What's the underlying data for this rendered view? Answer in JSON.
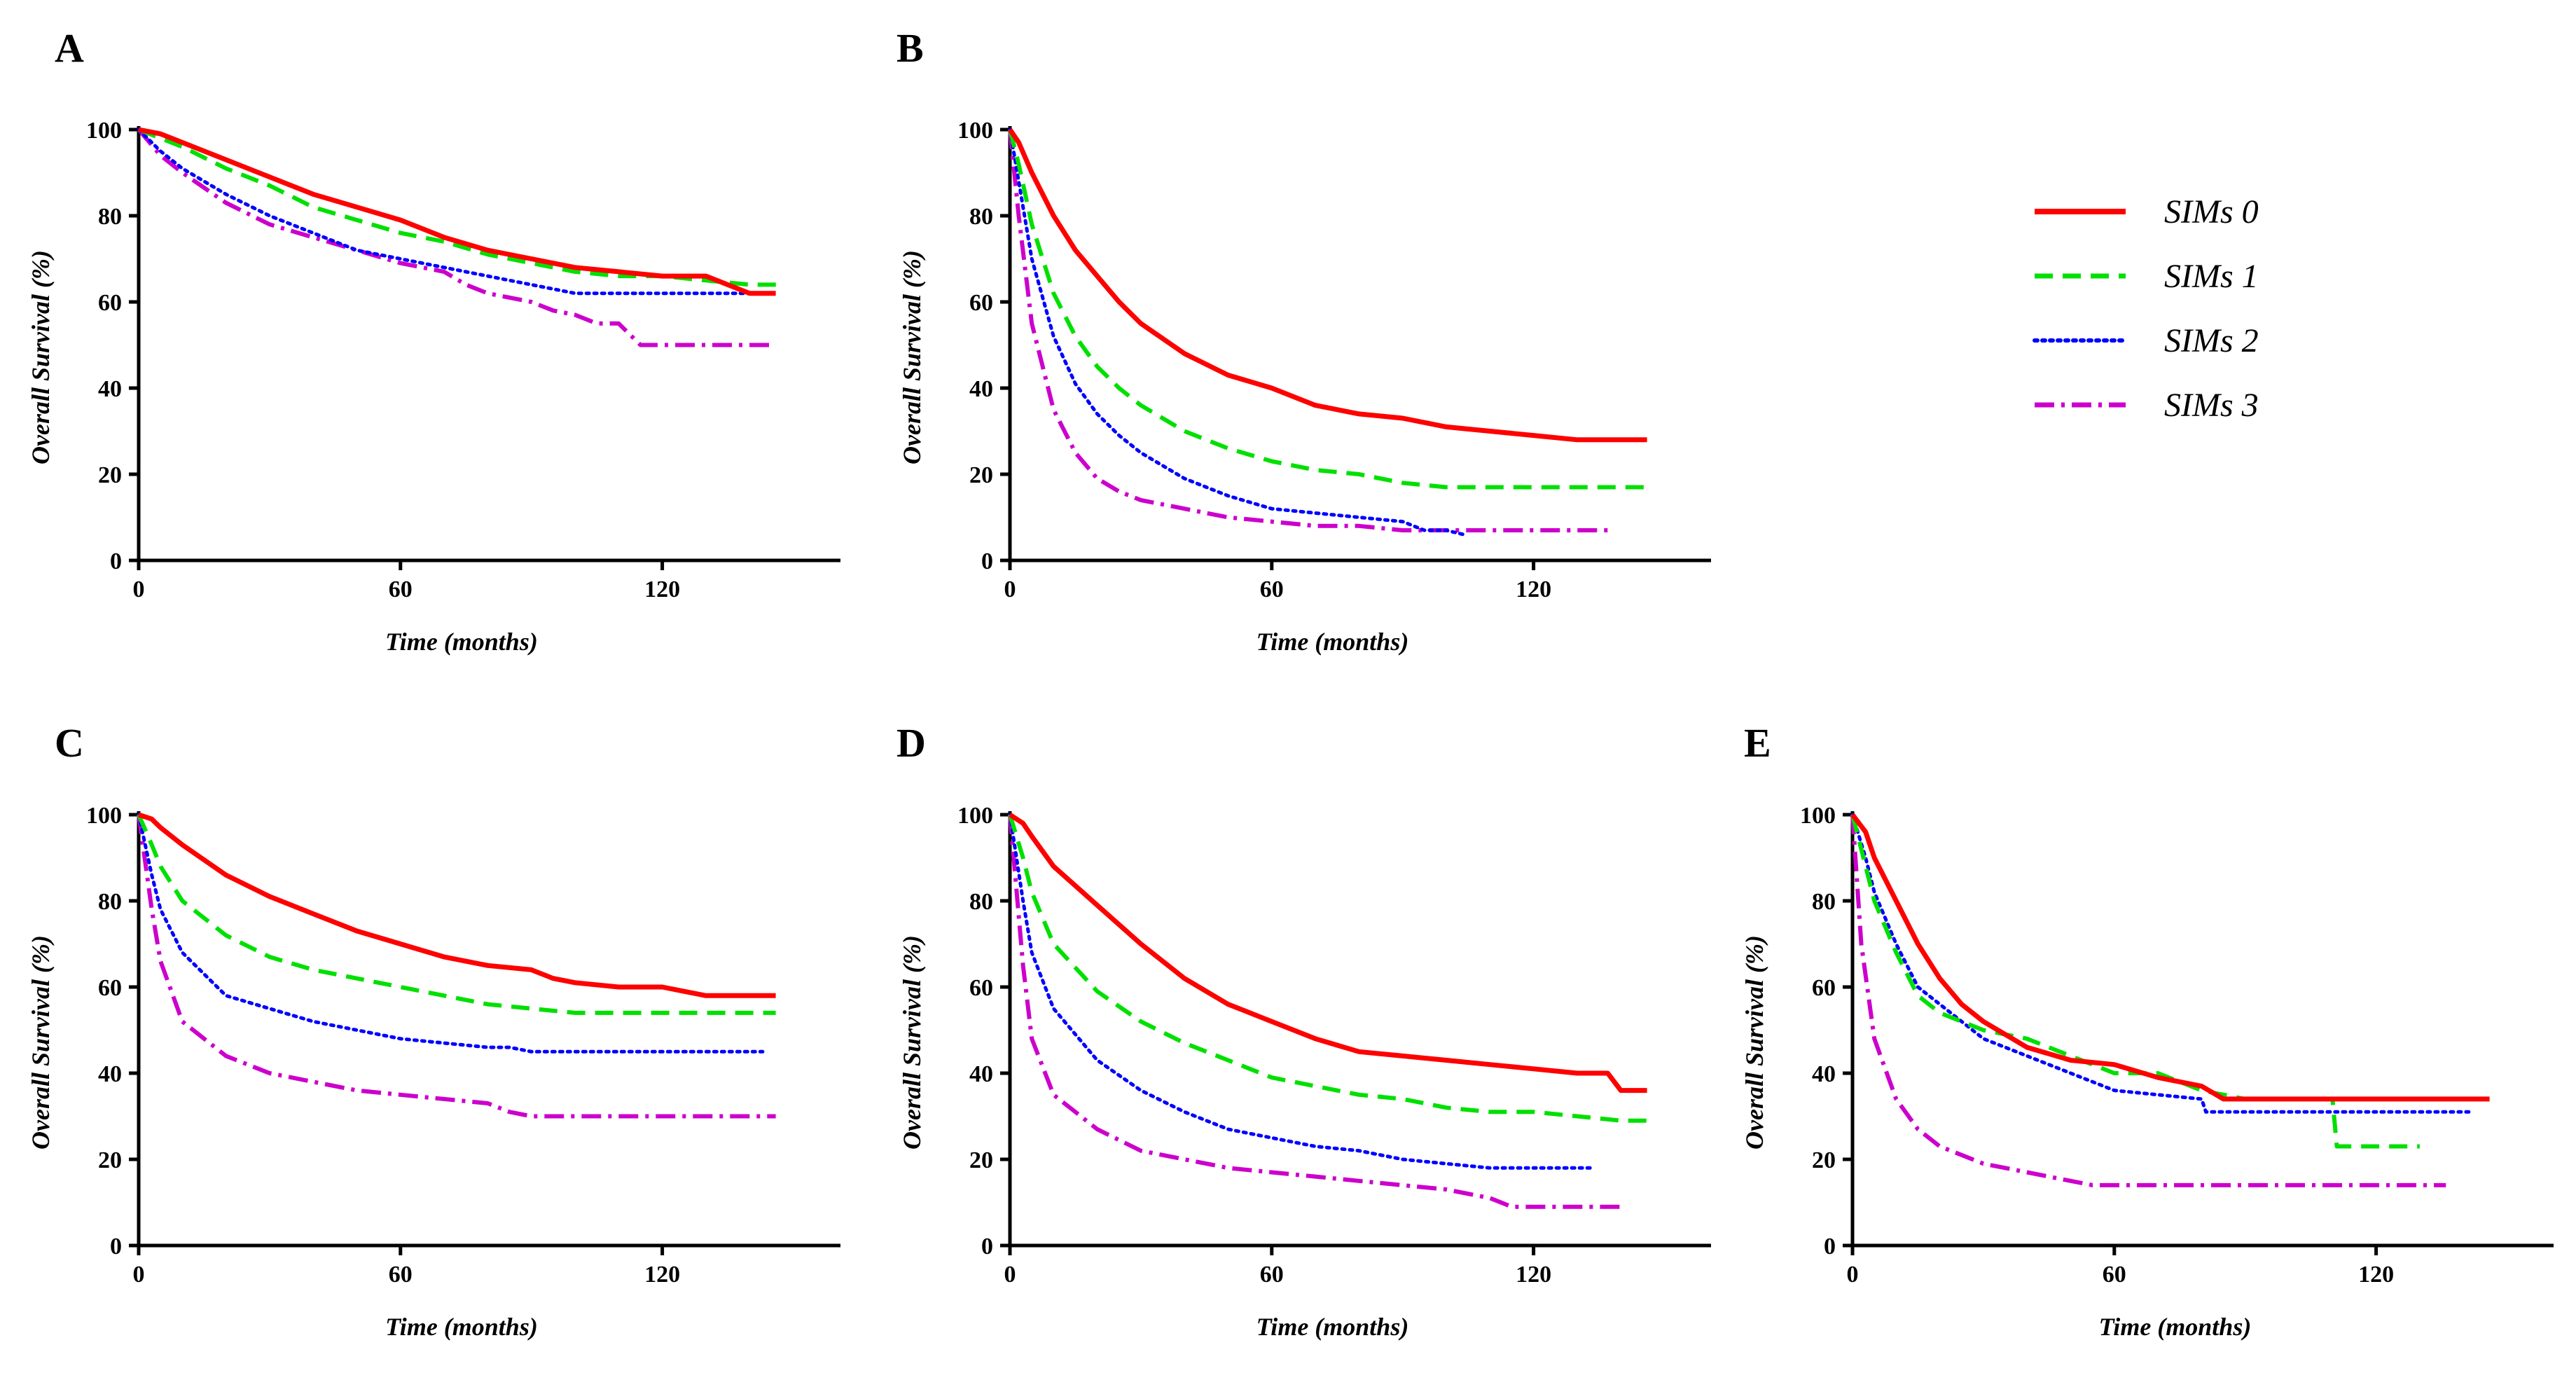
{
  "chart_data": [
    {
      "panel": "A",
      "type": "line",
      "xlabel": "Time (months)",
      "ylabel": "Overall Survival (%)",
      "xlim": [
        0,
        160
      ],
      "ylim": [
        0,
        100
      ],
      "xticks": [
        0,
        60,
        120
      ],
      "yticks": [
        0,
        20,
        40,
        60,
        80,
        100
      ],
      "series": [
        {
          "name": "SIMs 0",
          "x": [
            0,
            5,
            10,
            20,
            30,
            40,
            50,
            60,
            70,
            80,
            90,
            100,
            110,
            120,
            130,
            140,
            146
          ],
          "y": [
            100,
            99,
            97,
            93,
            89,
            85,
            82,
            79,
            75,
            72,
            70,
            68,
            67,
            66,
            66,
            62,
            62
          ]
        },
        {
          "name": "SIMs 1",
          "x": [
            0,
            5,
            10,
            20,
            30,
            40,
            50,
            60,
            70,
            80,
            90,
            100,
            110,
            120,
            130,
            140,
            148
          ],
          "y": [
            100,
            98,
            96,
            91,
            87,
            82,
            79,
            76,
            74,
            71,
            69,
            67,
            66,
            66,
            65,
            64,
            64
          ]
        },
        {
          "name": "SIMs 2",
          "x": [
            0,
            5,
            10,
            20,
            30,
            40,
            50,
            60,
            70,
            80,
            90,
            100,
            110,
            120,
            130,
            140,
            146
          ],
          "y": [
            100,
            95,
            91,
            85,
            80,
            76,
            72,
            70,
            68,
            66,
            64,
            62,
            62,
            62,
            62,
            62,
            62
          ]
        },
        {
          "name": "SIMs 3",
          "x": [
            0,
            5,
            10,
            20,
            30,
            40,
            50,
            60,
            70,
            75,
            80,
            90,
            95,
            100,
            105,
            110,
            115,
            120,
            130,
            140,
            146
          ],
          "y": [
            100,
            94,
            90,
            83,
            78,
            75,
            72,
            69,
            67,
            64,
            62,
            60,
            58,
            57,
            55,
            55,
            50,
            50,
            50,
            50,
            50
          ]
        }
      ]
    },
    {
      "panel": "B",
      "type": "line",
      "xlabel": "Time (months)",
      "ylabel": "Overall Survival (%)",
      "xlim": [
        0,
        160
      ],
      "ylim": [
        0,
        100
      ],
      "xticks": [
        0,
        60,
        120
      ],
      "yticks": [
        0,
        20,
        40,
        60,
        80,
        100
      ],
      "series": [
        {
          "name": "SIMs 0",
          "x": [
            0,
            2,
            5,
            10,
            15,
            20,
            25,
            30,
            40,
            50,
            60,
            70,
            80,
            90,
            100,
            110,
            120,
            130,
            140,
            146
          ],
          "y": [
            100,
            97,
            90,
            80,
            72,
            66,
            60,
            55,
            48,
            43,
            40,
            36,
            34,
            33,
            31,
            30,
            29,
            28,
            28,
            28
          ]
        },
        {
          "name": "SIMs 1",
          "x": [
            0,
            2,
            5,
            10,
            15,
            20,
            25,
            30,
            40,
            50,
            60,
            70,
            80,
            90,
            100,
            110,
            120,
            130,
            140,
            146
          ],
          "y": [
            100,
            92,
            78,
            62,
            52,
            45,
            40,
            36,
            30,
            26,
            23,
            21,
            20,
            18,
            17,
            17,
            17,
            17,
            17,
            17
          ]
        },
        {
          "name": "SIMs 2",
          "x": [
            0,
            2,
            5,
            10,
            15,
            20,
            25,
            30,
            40,
            50,
            60,
            70,
            80,
            90,
            95,
            100,
            104
          ],
          "y": [
            100,
            88,
            70,
            52,
            41,
            34,
            29,
            25,
            19,
            15,
            12,
            11,
            10,
            9,
            7,
            7,
            6
          ]
        },
        {
          "name": "SIMs 3",
          "x": [
            0,
            2,
            5,
            10,
            15,
            20,
            25,
            30,
            40,
            50,
            60,
            70,
            80,
            90,
            100,
            110,
            120,
            130,
            138
          ],
          "y": [
            100,
            80,
            55,
            35,
            25,
            19,
            16,
            14,
            12,
            10,
            9,
            8,
            8,
            7,
            7,
            7,
            7,
            7,
            7
          ]
        }
      ]
    },
    {
      "panel": "C",
      "type": "line",
      "xlabel": "Time (months)",
      "ylabel": "Overall Survival (%)",
      "xlim": [
        0,
        160
      ],
      "ylim": [
        0,
        100
      ],
      "xticks": [
        0,
        60,
        120
      ],
      "yticks": [
        0,
        20,
        40,
        60,
        80,
        100
      ],
      "series": [
        {
          "name": "SIMs 0",
          "x": [
            0,
            3,
            5,
            10,
            20,
            30,
            40,
            50,
            60,
            70,
            80,
            90,
            95,
            100,
            110,
            120,
            125,
            130,
            140,
            146
          ],
          "y": [
            100,
            99,
            97,
            93,
            86,
            81,
            77,
            73,
            70,
            67,
            65,
            64,
            62,
            61,
            60,
            60,
            59,
            58,
            58,
            58
          ]
        },
        {
          "name": "SIMs 1",
          "x": [
            0,
            3,
            5,
            10,
            20,
            30,
            40,
            50,
            60,
            70,
            80,
            90,
            100,
            110,
            120,
            130,
            140,
            146
          ],
          "y": [
            100,
            93,
            88,
            80,
            72,
            67,
            64,
            62,
            60,
            58,
            56,
            55,
            54,
            54,
            54,
            54,
            54,
            54
          ]
        },
        {
          "name": "SIMs 2",
          "x": [
            0,
            3,
            5,
            10,
            20,
            30,
            40,
            50,
            60,
            70,
            80,
            85,
            90,
            100,
            110,
            120,
            130,
            140,
            143
          ],
          "y": [
            100,
            86,
            78,
            68,
            58,
            55,
            52,
            50,
            48,
            47,
            46,
            46,
            45,
            45,
            45,
            45,
            45,
            45,
            45
          ]
        },
        {
          "name": "SIMs 3",
          "x": [
            0,
            3,
            5,
            10,
            20,
            30,
            40,
            50,
            60,
            70,
            80,
            85,
            90,
            100,
            110,
            120,
            130,
            140,
            146
          ],
          "y": [
            100,
            78,
            66,
            52,
            44,
            40,
            38,
            36,
            35,
            34,
            33,
            31,
            30,
            30,
            30,
            30,
            30,
            30,
            30
          ]
        }
      ]
    },
    {
      "panel": "D",
      "type": "line",
      "xlabel": "Time (months)",
      "ylabel": "Overall Survival (%)",
      "xlim": [
        0,
        160
      ],
      "ylim": [
        0,
        100
      ],
      "xticks": [
        0,
        60,
        120
      ],
      "yticks": [
        0,
        20,
        40,
        60,
        80,
        100
      ],
      "series": [
        {
          "name": "SIMs 0",
          "x": [
            0,
            3,
            5,
            10,
            20,
            30,
            40,
            50,
            60,
            70,
            80,
            90,
            100,
            110,
            120,
            130,
            137,
            140,
            146
          ],
          "y": [
            100,
            98,
            95,
            88,
            79,
            70,
            62,
            56,
            52,
            48,
            45,
            44,
            43,
            42,
            41,
            40,
            40,
            36,
            36
          ]
        },
        {
          "name": "SIMs 1",
          "x": [
            0,
            3,
            5,
            10,
            20,
            30,
            40,
            50,
            60,
            70,
            80,
            90,
            100,
            110,
            120,
            130,
            140,
            146
          ],
          "y": [
            100,
            90,
            82,
            70,
            59,
            52,
            47,
            43,
            39,
            37,
            35,
            34,
            32,
            31,
            31,
            30,
            29,
            29
          ]
        },
        {
          "name": "SIMs 2",
          "x": [
            0,
            3,
            5,
            10,
            20,
            30,
            40,
            50,
            60,
            70,
            80,
            90,
            100,
            110,
            120,
            130,
            134
          ],
          "y": [
            100,
            80,
            68,
            55,
            43,
            36,
            31,
            27,
            25,
            23,
            22,
            20,
            19,
            18,
            18,
            18,
            18
          ]
        },
        {
          "name": "SIMs 3",
          "x": [
            0,
            3,
            5,
            10,
            20,
            30,
            40,
            50,
            60,
            70,
            80,
            90,
            100,
            110,
            115,
            120,
            130,
            140
          ],
          "y": [
            100,
            65,
            48,
            35,
            27,
            22,
            20,
            18,
            17,
            16,
            15,
            14,
            13,
            11,
            9,
            9,
            9,
            9
          ]
        }
      ]
    },
    {
      "panel": "E",
      "type": "line",
      "xlabel": "Time (months)",
      "ylabel": "Overall Survival (%)",
      "xlim": [
        0,
        160
      ],
      "ylim": [
        0,
        100
      ],
      "xticks": [
        0,
        60,
        120
      ],
      "yticks": [
        0,
        20,
        40,
        60,
        80,
        100
      ],
      "series": [
        {
          "name": "SIMs 0",
          "x": [
            0,
            3,
            5,
            10,
            15,
            20,
            25,
            30,
            40,
            50,
            60,
            70,
            80,
            85,
            90,
            100,
            110,
            120,
            130,
            140,
            146
          ],
          "y": [
            100,
            96,
            90,
            80,
            70,
            62,
            56,
            52,
            46,
            43,
            42,
            39,
            37,
            34,
            34,
            34,
            34,
            34,
            34,
            34,
            34
          ]
        },
        {
          "name": "SIMs 1",
          "x": [
            0,
            3,
            5,
            10,
            15,
            20,
            25,
            30,
            40,
            50,
            60,
            70,
            80,
            90,
            100,
            110,
            111,
            120,
            130
          ],
          "y": [
            100,
            88,
            80,
            68,
            58,
            54,
            52,
            50,
            48,
            44,
            40,
            40,
            36,
            34,
            34,
            34,
            23,
            23,
            23
          ]
        },
        {
          "name": "SIMs 2",
          "x": [
            0,
            3,
            5,
            10,
            15,
            20,
            25,
            30,
            40,
            50,
            55,
            60,
            70,
            80,
            81,
            90,
            100,
            110,
            120,
            130,
            140,
            142
          ],
          "y": [
            100,
            90,
            82,
            70,
            60,
            56,
            52,
            48,
            44,
            40,
            38,
            36,
            35,
            34,
            31,
            31,
            31,
            31,
            31,
            31,
            31,
            31
          ]
        },
        {
          "name": "SIMs 3",
          "x": [
            0,
            2,
            5,
            10,
            15,
            20,
            25,
            30,
            35,
            40,
            50,
            55,
            60,
            70,
            80,
            90,
            100,
            110,
            120,
            130,
            136
          ],
          "y": [
            100,
            70,
            48,
            34,
            27,
            23,
            21,
            19,
            18,
            17,
            15,
            14,
            14,
            14,
            14,
            14,
            14,
            14,
            14,
            14,
            14
          ]
        }
      ]
    }
  ],
  "legend": [
    {
      "name": "SIMs 0",
      "color": "#ff0000",
      "dash": "solid"
    },
    {
      "name": "SIMs 1",
      "color": "#00e000",
      "dash": "dashed"
    },
    {
      "name": "SIMs 2",
      "color": "#0000ff",
      "dash": "dotted"
    },
    {
      "name": "SIMs 3",
      "color": "#cc00cc",
      "dash": "dashdot"
    }
  ]
}
